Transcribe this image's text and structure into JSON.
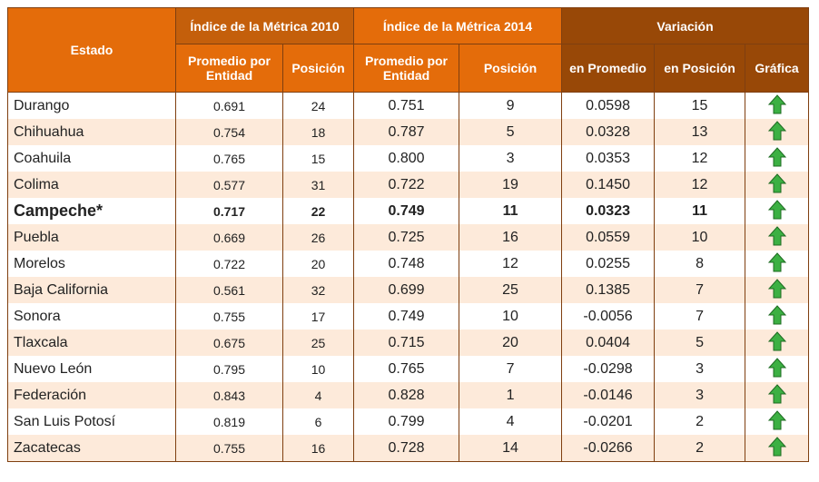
{
  "header": {
    "estado": "Estado",
    "group_2010": "Índice de la Métrica 2010",
    "group_2014": "Índice de la Métrica 2014",
    "group_var": "Variación",
    "sub": [
      "Promedio por Entidad",
      "Posición",
      "Promedio por Entidad",
      "Posición",
      "en Promedio",
      "en Posición",
      "Gráfica"
    ]
  },
  "table": {
    "rows": [
      [
        "Durango",
        "0.691",
        "24",
        "0.751",
        "9",
        "0.0598",
        "15"
      ],
      [
        "Chihuahua",
        "0.754",
        "18",
        "0.787",
        "5",
        "0.0328",
        "13"
      ],
      [
        "Coahuila",
        "0.765",
        "15",
        "0.800",
        "3",
        "0.0353",
        "12"
      ],
      [
        "Colima",
        "0.577",
        "31",
        "0.722",
        "19",
        "0.1450",
        "12"
      ],
      [
        "Campeche*",
        "0.717",
        "22",
        "0.749",
        "11",
        "0.0323",
        "11"
      ],
      [
        "Puebla",
        "0.669",
        "26",
        "0.725",
        "16",
        "0.0559",
        "10"
      ],
      [
        "Morelos",
        "0.722",
        "20",
        "0.748",
        "12",
        "0.0255",
        "8"
      ],
      [
        "Baja California",
        "0.561",
        "32",
        "0.699",
        "25",
        "0.1385",
        "7"
      ],
      [
        "Sonora",
        "0.755",
        "17",
        "0.749",
        "10",
        "-0.0056",
        "7"
      ],
      [
        "Tlaxcala",
        "0.675",
        "25",
        "0.715",
        "20",
        "0.0404",
        "5"
      ],
      [
        "Nuevo León",
        "0.795",
        "10",
        "0.765",
        "7",
        "-0.0298",
        "3"
      ],
      [
        "Federación",
        "0.843",
        "4",
        "0.828",
        "1",
        "-0.0146",
        "3"
      ],
      [
        "San Luis Potosí",
        "0.819",
        "6",
        "0.799",
        "4",
        "-0.0201",
        "2"
      ],
      [
        "Zacatecas",
        "0.755",
        "16",
        "0.728",
        "14",
        "-0.0266",
        "2"
      ]
    ]
  }
}
